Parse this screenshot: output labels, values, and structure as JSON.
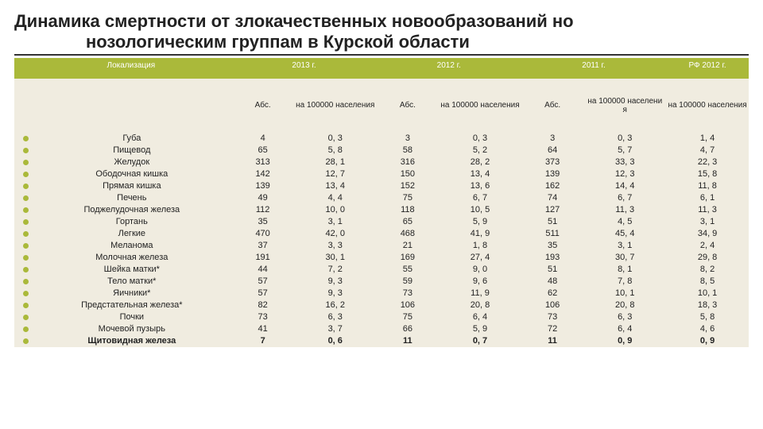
{
  "title_line1": "Динамика смертности от злокачественных новообразований но",
  "title_line2": "нозологическим группам в Курской области",
  "headers": {
    "localization": "Локализация",
    "y2013": "2013 г.",
    "y2012": "2012 г.",
    "y2011": "2011 г.",
    "rf2012": "РФ 2012 г.",
    "abs": "Абс.",
    "per100k": "на 100000 населения",
    "per100k_narrow": "на 100000 населени я"
  },
  "rows": [
    {
      "loc": "Губа",
      "a13": "4",
      "r13": "0, 3",
      "a12": "3",
      "r12": "0, 3",
      "a11": "3",
      "r11": "0, 3",
      "rf": "1, 4",
      "b": false
    },
    {
      "loc": "Пищевод",
      "a13": "65",
      "r13": "5, 8",
      "a12": "58",
      "r12": "5, 2",
      "a11": "64",
      "r11": "5, 7",
      "rf": "4, 7",
      "b": false
    },
    {
      "loc": "Желудок",
      "a13": "313",
      "r13": "28, 1",
      "a12": "316",
      "r12": "28, 2",
      "a11": "373",
      "r11": "33, 3",
      "rf": "22, 3",
      "b": false
    },
    {
      "loc": "Ободочная кишка",
      "a13": "142",
      "r13": "12, 7",
      "a12": "150",
      "r12": "13, 4",
      "a11": "139",
      "r11": "12, 3",
      "rf": "15, 8",
      "b": false
    },
    {
      "loc": "Прямая кишка",
      "a13": "139",
      "r13": "13, 4",
      "a12": "152",
      "r12": "13, 6",
      "a11": "162",
      "r11": "14, 4",
      "rf": "11, 8",
      "b": false
    },
    {
      "loc": "Печень",
      "a13": "49",
      "r13": "4, 4",
      "a12": "75",
      "r12": "6, 7",
      "a11": "74",
      "r11": "6, 7",
      "rf": "6, 1",
      "b": false
    },
    {
      "loc": "Поджелудочная железа",
      "a13": "112",
      "r13": "10, 0",
      "a12": "118",
      "r12": "10, 5",
      "a11": "127",
      "r11": "11, 3",
      "rf": "11, 3",
      "b": false
    },
    {
      "loc": "Гортань",
      "a13": "35",
      "r13": "3, 1",
      "a12": "65",
      "r12": "5, 9",
      "a11": "51",
      "r11": "4, 5",
      "rf": "3, 1",
      "b": false
    },
    {
      "loc": "Легкие",
      "a13": "470",
      "r13": "42, 0",
      "a12": "468",
      "r12": "41, 9",
      "a11": "511",
      "r11": "45, 4",
      "rf": "34, 9",
      "b": false
    },
    {
      "loc": "Меланома",
      "a13": "37",
      "r13": "3, 3",
      "a12": "21",
      "r12": "1, 8",
      "a11": "35",
      "r11": "3, 1",
      "rf": "2, 4",
      "b": false
    },
    {
      "loc": "Молочная железа",
      "a13": "191",
      "r13": "30, 1",
      "a12": "169",
      "r12": "27, 4",
      "a11": "193",
      "r11": "30, 7",
      "rf": "29, 8",
      "b": false
    },
    {
      "loc": "Шейка матки*",
      "a13": "44",
      "r13": "7, 2",
      "a12": "55",
      "r12": "9, 0",
      "a11": "51",
      "r11": "8, 1",
      "rf": "8, 2",
      "b": false
    },
    {
      "loc": "Тело матки*",
      "a13": "57",
      "r13": "9, 3",
      "a12": "59",
      "r12": "9, 6",
      "a11": "48",
      "r11": "7, 8",
      "rf": "8, 5",
      "b": false
    },
    {
      "loc": "Яичники*",
      "a13": "57",
      "r13": "9, 3",
      "a12": "73",
      "r12": "11, 9",
      "a11": "62",
      "r11": "10, 1",
      "rf": "10, 1",
      "b": false
    },
    {
      "loc": "Предстательная железа*",
      "a13": "82",
      "r13": "16, 2",
      "a12": "106",
      "r12": "20, 8",
      "a11": "106",
      "r11": "20, 8",
      "rf": "18, 3",
      "b": false
    },
    {
      "loc": "Почки",
      "a13": "73",
      "r13": "6, 3",
      "a12": "75",
      "r12": "6, 4",
      "a11": "73",
      "r11": "6, 3",
      "rf": "5, 8",
      "b": false
    },
    {
      "loc": "Мочевой пузырь",
      "a13": "41",
      "r13": "3, 7",
      "a12": "66",
      "r12": "5, 9",
      "a11": "72",
      "r11": "6, 4",
      "rf": "4, 6",
      "b": false
    },
    {
      "loc": "Щитовидная железа",
      "a13": "7",
      "r13": "0, 6",
      "a12": "11",
      "r12": "0, 7",
      "a11": "11",
      "r11": "0, 9",
      "rf": "0, 9",
      "b": true
    }
  ]
}
